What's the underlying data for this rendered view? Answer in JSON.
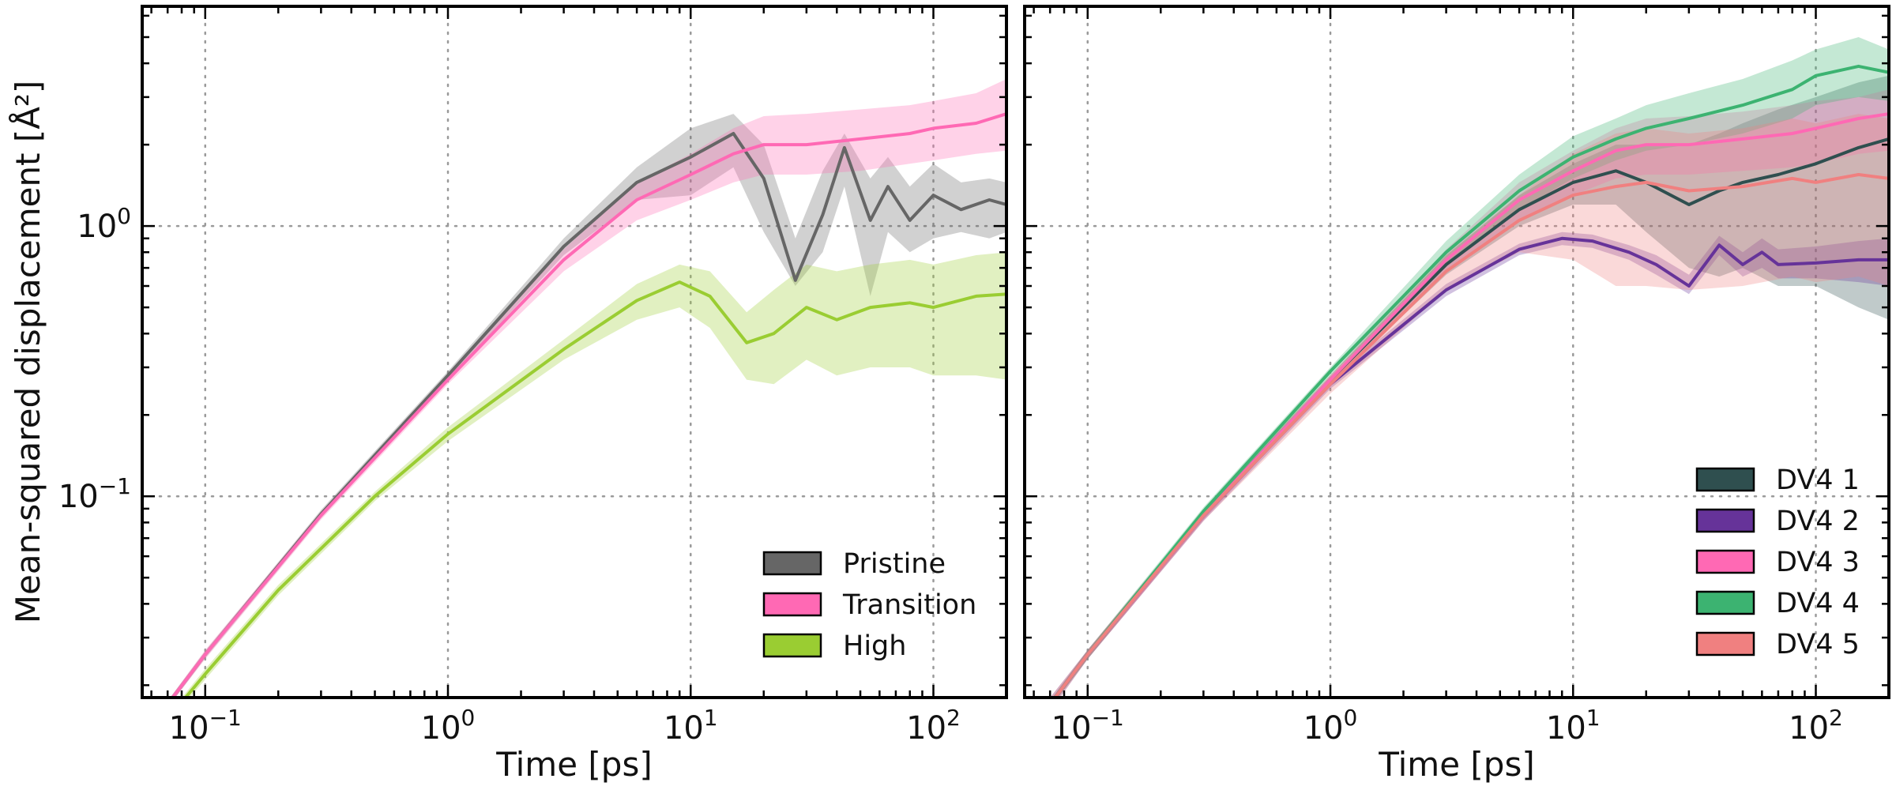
{
  "chart_data": [
    {
      "type": "line",
      "panel": "left",
      "xscale": "log",
      "yscale": "log",
      "xlim": [
        0.055,
        200
      ],
      "ylim": [
        0.018,
        6.5
      ],
      "xlabel": "Time [ps]",
      "ylabel": "Mean-squared displacement [Å²]",
      "xticks": [
        0.1,
        1,
        10,
        100
      ],
      "yticks": [
        0.1,
        1
      ],
      "tick_labels": {
        "x": [
          {
            "base": "10",
            "exp": "−1"
          },
          {
            "base": "10",
            "exp": "0"
          },
          {
            "base": "10",
            "exp": "1"
          },
          {
            "base": "10",
            "exp": "2"
          }
        ],
        "y": [
          {
            "base": "10",
            "exp": "−1"
          },
          {
            "base": "10",
            "exp": "0"
          }
        ]
      },
      "grid": true,
      "legend_position": "lower-right",
      "series": [
        {
          "name": "Pristine",
          "color": "#666666",
          "x": [
            0.07,
            0.1,
            0.3,
            1,
            3,
            6,
            10,
            15,
            20,
            27,
            35,
            43,
            55,
            65,
            80,
            100,
            130,
            170,
            200
          ],
          "y": [
            0.017,
            0.026,
            0.086,
            0.28,
            0.84,
            1.45,
            1.8,
            2.2,
            1.5,
            0.63,
            1.1,
            1.95,
            1.05,
            1.4,
            1.05,
            1.3,
            1.15,
            1.25,
            1.2
          ],
          "lower": [
            0.0165,
            0.0252,
            0.083,
            0.27,
            0.78,
            1.25,
            1.3,
            1.65,
            0.95,
            0.6,
            0.8,
            1.4,
            0.55,
            0.95,
            0.8,
            0.9,
            0.95,
            0.9,
            0.95
          ],
          "upper": [
            0.0175,
            0.0268,
            0.089,
            0.29,
            0.9,
            1.65,
            2.3,
            2.6,
            2.0,
            0.9,
            1.6,
            2.2,
            1.5,
            1.8,
            1.4,
            1.7,
            1.45,
            1.5,
            1.45
          ]
        },
        {
          "name": "Transition",
          "color": "#ff69b4",
          "x": [
            0.07,
            0.1,
            0.3,
            1,
            3,
            6,
            10,
            15,
            20,
            30,
            50,
            80,
            100,
            150,
            200
          ],
          "y": [
            0.017,
            0.026,
            0.085,
            0.27,
            0.75,
            1.25,
            1.55,
            1.85,
            2.0,
            2.0,
            2.1,
            2.2,
            2.3,
            2.4,
            2.6
          ],
          "lower": [
            0.0165,
            0.025,
            0.082,
            0.26,
            0.68,
            1.05,
            1.25,
            1.45,
            1.55,
            1.55,
            1.6,
            1.7,
            1.75,
            1.85,
            1.9
          ],
          "upper": [
            0.0175,
            0.027,
            0.088,
            0.28,
            0.82,
            1.45,
            1.85,
            2.3,
            2.55,
            2.6,
            2.7,
            2.8,
            2.9,
            3.1,
            3.5
          ]
        },
        {
          "name": "High",
          "color": "#9acd32",
          "x": [
            0.07,
            0.1,
            0.2,
            0.5,
            1,
            3,
            6,
            9,
            12,
            17,
            22,
            30,
            40,
            55,
            80,
            100,
            150,
            200
          ],
          "y": [
            0.015,
            0.022,
            0.045,
            0.1,
            0.17,
            0.35,
            0.53,
            0.62,
            0.55,
            0.37,
            0.4,
            0.5,
            0.45,
            0.5,
            0.52,
            0.5,
            0.55,
            0.56
          ],
          "lower": [
            0.0145,
            0.021,
            0.043,
            0.096,
            0.16,
            0.32,
            0.45,
            0.5,
            0.42,
            0.27,
            0.26,
            0.32,
            0.28,
            0.3,
            0.3,
            0.28,
            0.28,
            0.27
          ],
          "upper": [
            0.0155,
            0.023,
            0.047,
            0.104,
            0.18,
            0.38,
            0.61,
            0.72,
            0.68,
            0.48,
            0.58,
            0.72,
            0.68,
            0.72,
            0.75,
            0.72,
            0.78,
            0.8
          ]
        }
      ]
    },
    {
      "type": "line",
      "panel": "right",
      "xscale": "log",
      "yscale": "log",
      "xlim": [
        0.055,
        200
      ],
      "ylim": [
        0.018,
        6.5
      ],
      "xlabel": "Time [ps]",
      "ylabel": "",
      "xticks": [
        0.1,
        1,
        10,
        100
      ],
      "yticks": [
        0.1,
        1
      ],
      "tick_labels": {
        "x": [
          {
            "base": "10",
            "exp": "−1"
          },
          {
            "base": "10",
            "exp": "0"
          },
          {
            "base": "10",
            "exp": "1"
          },
          {
            "base": "10",
            "exp": "2"
          }
        ],
        "y": []
      },
      "grid": true,
      "legend_position": "lower-right",
      "series": [
        {
          "name": "DV4 1",
          "color": "#2f4f4f",
          "x": [
            0.07,
            0.1,
            0.3,
            1,
            3,
            6,
            10,
            15,
            20,
            30,
            40,
            50,
            70,
            100,
            150,
            200
          ],
          "y": [
            0.017,
            0.026,
            0.085,
            0.27,
            0.72,
            1.15,
            1.45,
            1.6,
            1.45,
            1.2,
            1.35,
            1.45,
            1.55,
            1.7,
            1.95,
            2.1
          ],
          "lower": [
            0.0165,
            0.025,
            0.082,
            0.26,
            0.66,
            1.0,
            1.2,
            1.2,
            0.95,
            0.7,
            0.65,
            0.7,
            0.6,
            0.6,
            0.5,
            0.45
          ],
          "upper": [
            0.0175,
            0.027,
            0.088,
            0.28,
            0.78,
            1.3,
            1.7,
            2.0,
            2.0,
            2.0,
            2.2,
            2.4,
            2.7,
            3.0,
            3.4,
            3.6
          ]
        },
        {
          "name": "DV4 2",
          "color": "#663399",
          "x": [
            0.07,
            0.1,
            0.3,
            1,
            3,
            6,
            9,
            12,
            17,
            22,
            30,
            40,
            50,
            60,
            70,
            100,
            150,
            200
          ],
          "y": [
            0.017,
            0.026,
            0.085,
            0.26,
            0.58,
            0.82,
            0.9,
            0.88,
            0.8,
            0.72,
            0.6,
            0.85,
            0.72,
            0.8,
            0.72,
            0.73,
            0.75,
            0.75
          ],
          "lower": [
            0.016,
            0.025,
            0.081,
            0.25,
            0.55,
            0.78,
            0.85,
            0.83,
            0.75,
            0.66,
            0.56,
            0.78,
            0.65,
            0.7,
            0.64,
            0.64,
            0.62,
            0.6
          ],
          "upper": [
            0.018,
            0.027,
            0.089,
            0.27,
            0.61,
            0.86,
            0.95,
            0.93,
            0.85,
            0.78,
            0.66,
            0.92,
            0.8,
            0.9,
            0.82,
            0.84,
            0.88,
            0.9
          ]
        },
        {
          "name": "DV4 3",
          "color": "#ff69b4",
          "x": [
            0.07,
            0.1,
            0.3,
            1,
            3,
            6,
            10,
            15,
            20,
            30,
            50,
            80,
            100,
            150,
            200
          ],
          "y": [
            0.017,
            0.026,
            0.085,
            0.27,
            0.75,
            1.25,
            1.6,
            1.9,
            2.0,
            2.0,
            2.1,
            2.2,
            2.3,
            2.5,
            2.6
          ],
          "lower": [
            0.0165,
            0.025,
            0.082,
            0.26,
            0.68,
            1.05,
            1.3,
            1.5,
            1.55,
            1.55,
            1.6,
            1.65,
            1.7,
            1.85,
            1.9
          ],
          "upper": [
            0.0175,
            0.027,
            0.088,
            0.28,
            0.82,
            1.45,
            1.9,
            2.3,
            2.5,
            2.55,
            2.65,
            2.8,
            2.9,
            3.0,
            3.2
          ]
        },
        {
          "name": "DV4 4",
          "color": "#3cb371",
          "x": [
            0.07,
            0.1,
            0.3,
            1,
            3,
            6,
            10,
            15,
            20,
            30,
            50,
            80,
            100,
            150,
            200
          ],
          "y": [
            0.017,
            0.026,
            0.088,
            0.29,
            0.8,
            1.35,
            1.8,
            2.1,
            2.3,
            2.5,
            2.8,
            3.2,
            3.6,
            3.9,
            3.7
          ],
          "lower": [
            0.0165,
            0.025,
            0.085,
            0.28,
            0.72,
            1.15,
            1.5,
            1.75,
            1.9,
            2.0,
            2.2,
            2.5,
            2.8,
            3.0,
            2.9
          ],
          "upper": [
            0.0175,
            0.027,
            0.091,
            0.3,
            0.88,
            1.55,
            2.15,
            2.5,
            2.8,
            3.1,
            3.5,
            4.1,
            4.5,
            5.0,
            4.5
          ]
        },
        {
          "name": "DV4 5",
          "color": "#f08080",
          "x": [
            0.07,
            0.1,
            0.3,
            1,
            3,
            6,
            10,
            15,
            20,
            30,
            50,
            80,
            100,
            150,
            200
          ],
          "y": [
            0.017,
            0.026,
            0.085,
            0.26,
            0.68,
            1.05,
            1.3,
            1.4,
            1.45,
            1.35,
            1.4,
            1.5,
            1.45,
            1.55,
            1.5
          ],
          "lower": [
            0.016,
            0.025,
            0.081,
            0.24,
            0.58,
            0.8,
            0.75,
            0.6,
            0.6,
            0.58,
            0.6,
            0.65,
            0.62,
            0.65,
            0.6
          ],
          "upper": [
            0.018,
            0.027,
            0.089,
            0.28,
            0.78,
            1.3,
            1.85,
            2.2,
            2.3,
            2.2,
            2.3,
            2.5,
            2.4,
            2.6,
            2.5
          ]
        }
      ]
    }
  ]
}
